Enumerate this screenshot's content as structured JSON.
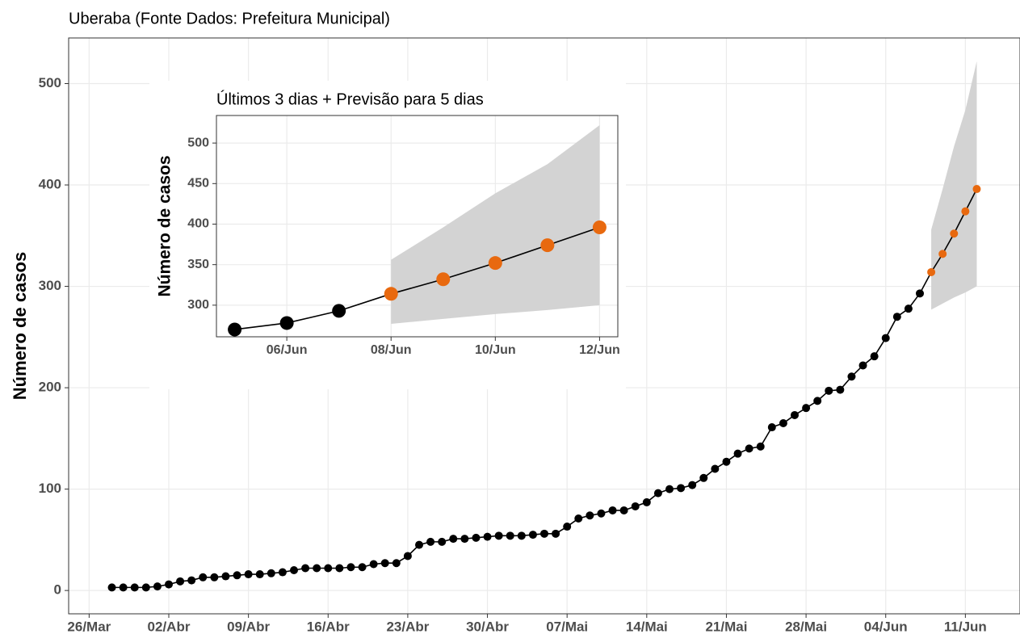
{
  "chart_data": [
    {
      "type": "line",
      "title": "Uberaba (Fonte Dados: Prefeitura Municipal)",
      "y_label": "Número de casos",
      "xlim": [
        "28/Mar",
        "12/Jun"
      ],
      "xticks": [
        "26/Mar",
        "02/Abr",
        "09/Abr",
        "16/Abr",
        "23/Abr",
        "30/Abr",
        "07/Mai",
        "14/Mai",
        "21/Mai",
        "28/Mai",
        "04/Jun",
        "11/Jun"
      ],
      "ylim": [
        -23,
        545
      ],
      "yticks": [
        0,
        100,
        200,
        300,
        400,
        500
      ],
      "grid": true,
      "line_color": "#000000",
      "band_color": "#d3d3d3",
      "series": [
        {
          "color": "#000000",
          "x": [
            "28/Mar",
            "29/Mar",
            "30/Mar",
            "31/Mar",
            "01/Abr",
            "02/Abr",
            "03/Abr",
            "04/Abr",
            "05/Abr",
            "06/Abr",
            "07/Abr",
            "08/Abr",
            "09/Abr",
            "10/Abr",
            "11/Abr",
            "12/Abr",
            "13/Abr",
            "14/Abr",
            "15/Abr",
            "16/Abr",
            "17/Abr",
            "18/Abr",
            "19/Abr",
            "20/Abr",
            "21/Abr",
            "22/Abr",
            "23/Abr",
            "24/Abr",
            "25/Abr",
            "26/Abr",
            "27/Abr",
            "28/Abr",
            "29/Abr",
            "30/Abr",
            "01/Mai",
            "02/Mai",
            "03/Mai",
            "04/Mai",
            "05/Mai",
            "06/Mai",
            "07/Mai",
            "08/Mai",
            "09/Mai",
            "10/Mai",
            "11/Mai",
            "12/Mai",
            "13/Mai",
            "14/Mai",
            "15/Mai",
            "16/Mai",
            "17/Mai",
            "18/Mai",
            "19/Mai",
            "20/Mai",
            "21/Mai",
            "22/Mai",
            "23/Mai",
            "24/Mai",
            "25/Mai",
            "26/Mai",
            "27/Mai",
            "28/Mai",
            "29/Mai",
            "30/Mai",
            "31/Mai",
            "01/Jun",
            "02/Jun",
            "03/Jun",
            "04/Jun",
            "05/Jun",
            "06/Jun",
            "07/Jun"
          ],
          "values": [
            3,
            3,
            3,
            3,
            4,
            6,
            9,
            10,
            13,
            13,
            14,
            15,
            16,
            16,
            17,
            18,
            20,
            22,
            22,
            22,
            22,
            23,
            23,
            26,
            27,
            27,
            34,
            45,
            48,
            48,
            51,
            51,
            52,
            53,
            54,
            54,
            54,
            55,
            56,
            56,
            63,
            71,
            74,
            76,
            79,
            79,
            83,
            87,
            96,
            100,
            101,
            104,
            111,
            120,
            127,
            135,
            140,
            142,
            161,
            165,
            173,
            180,
            187,
            197,
            198,
            211,
            222,
            231,
            249,
            270,
            278,
            293
          ]
        },
        {
          "color": "#e8690f",
          "x": [
            "08/Jun",
            "09/Jun",
            "10/Jun",
            "11/Jun",
            "12/Jun"
          ],
          "values": [
            314,
            332,
            352,
            374,
            396
          ],
          "lower": [
            277,
            283,
            289,
            294,
            300
          ],
          "upper": [
            356,
            396,
            438,
            474,
            522
          ]
        }
      ]
    },
    {
      "type": "line",
      "title": "Últimos 3 dias + Previsão para 5 dias",
      "y_label": "Número de casos",
      "xlim": [
        "05/Jun",
        "12/Jun"
      ],
      "xticks": [
        "06/Jun",
        "08/Jun",
        "10/Jun",
        "12/Jun"
      ],
      "ylim": [
        261,
        534
      ],
      "yticks": [
        300,
        350,
        400,
        450,
        500
      ],
      "grid": true,
      "line_color": "#000000",
      "band_color": "#d3d3d3",
      "series": [
        {
          "color": "#000000",
          "x": [
            "05/Jun",
            "06/Jun",
            "07/Jun"
          ],
          "values": [
            270,
            278,
            293
          ]
        },
        {
          "color": "#e8690f",
          "x": [
            "08/Jun",
            "09/Jun",
            "10/Jun",
            "11/Jun",
            "12/Jun"
          ],
          "values": [
            314,
            332,
            352,
            374,
            396
          ],
          "lower": [
            277,
            283,
            289,
            294,
            300
          ],
          "upper": [
            356,
            396,
            438,
            474,
            522
          ]
        }
      ]
    }
  ]
}
